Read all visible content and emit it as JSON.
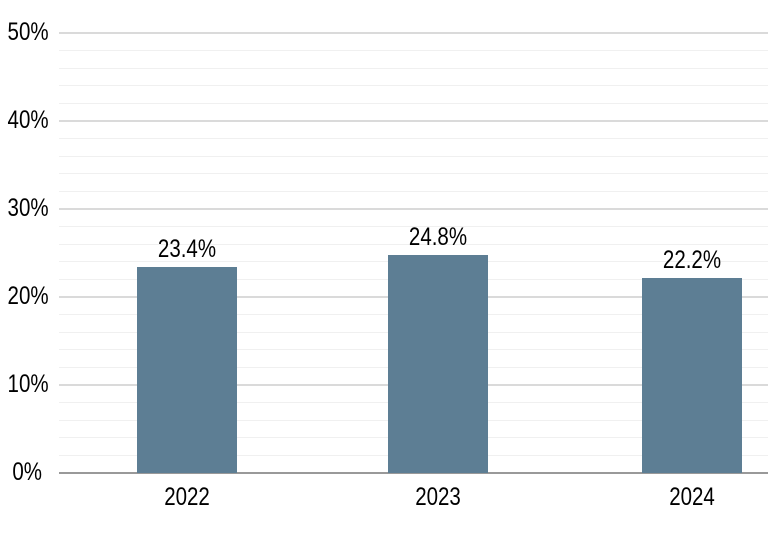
{
  "chart_data": {
    "type": "bar",
    "categories": [
      "2022",
      "2023",
      "2024"
    ],
    "values": [
      23.4,
      24.8,
      22.2
    ],
    "data_labels": [
      "23.4%",
      "24.8%",
      "22.2%"
    ],
    "y_ticks": [
      {
        "value": 0,
        "label": "0%"
      },
      {
        "value": 10,
        "label": "10%"
      },
      {
        "value": 20,
        "label": "20%"
      },
      {
        "value": 30,
        "label": "30%"
      },
      {
        "value": 40,
        "label": "40%"
      },
      {
        "value": 50,
        "label": "50%"
      }
    ],
    "ylim": [
      0,
      50
    ],
    "major_grid_step": 10,
    "minor_grid_step": 2,
    "grid": "on",
    "legend_position": "none",
    "colors": {
      "bar": "#5d7e94",
      "major_gridline": "#dadada",
      "minor_gridline": "#f0f0f0",
      "axis_line": "#999999",
      "text": "#000000",
      "background": "#ffffff"
    }
  }
}
